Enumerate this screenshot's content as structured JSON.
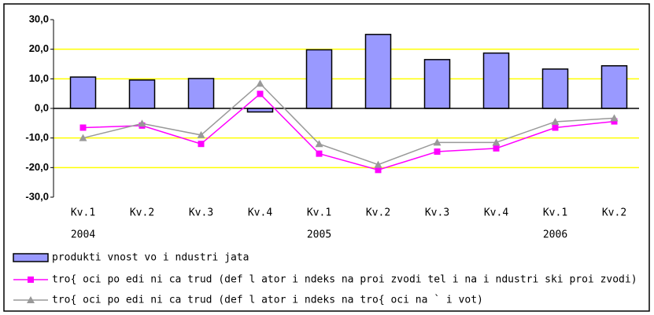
{
  "chart_data": {
    "type": "bar_line",
    "categories": [
      "Kv.1",
      "Kv.2",
      "Kv.3",
      "Kv.4",
      "Kv.1",
      "Kv.2",
      "Kv.3",
      "Kv.4",
      "Kv.1",
      "Kv.2"
    ],
    "category_years": [
      "2004",
      null,
      null,
      null,
      "2005",
      null,
      null,
      null,
      "2006",
      null
    ],
    "series": [
      {
        "name": "produkti vnost vo i ndustri jata",
        "type": "bar",
        "color": "#9999ff",
        "values": [
          10.6,
          9.6,
          10.1,
          -1.2,
          19.8,
          25.0,
          16.5,
          18.7,
          13.3,
          14.4
        ]
      },
      {
        "name": "tro{ oci po edi ni ca trud (def l ator i ndeks na proi zvodi tel i na i ndustri ski proi zvodi)",
        "type": "line",
        "marker": "square",
        "color": "#ff00ff",
        "values": [
          -6.5,
          -5.8,
          -12.0,
          4.9,
          -15.3,
          -20.8,
          -14.6,
          -13.5,
          -6.5,
          -4.4
        ]
      },
      {
        "name": "tro{ oci po edi ni ca trud (def l ator i ndeks na tro{ oci na ` i vot)",
        "type": "line",
        "marker": "triangle",
        "color": "#999999",
        "values": [
          -10.0,
          -5.1,
          -9.0,
          8.4,
          -12.0,
          -19.0,
          -11.5,
          -11.5,
          -4.5,
          -3.3
        ]
      }
    ],
    "ylim": [
      -30,
      30
    ],
    "yticks": [
      {
        "value": 30,
        "label": "30,0"
      },
      {
        "value": 20,
        "label": "20,0"
      },
      {
        "value": 10,
        "label": "10,0"
      },
      {
        "value": 0,
        "label": "0,0"
      },
      {
        "value": -10,
        "label": "-10,0"
      },
      {
        "value": -20,
        "label": "-20,0"
      },
      {
        "value": -30,
        "label": "-30,0"
      }
    ],
    "grid": true,
    "grid_color": "#ffff00",
    "legend": "bottom-left"
  }
}
